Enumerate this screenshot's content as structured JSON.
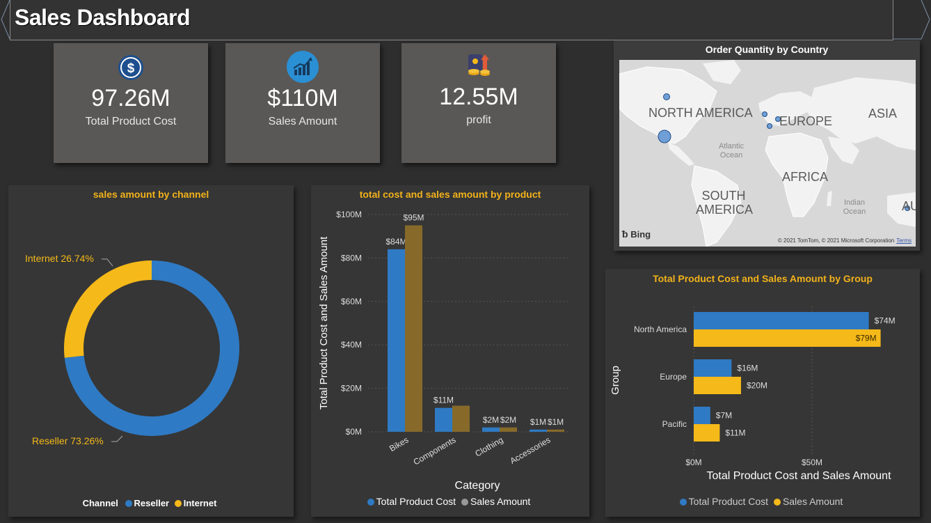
{
  "header": {
    "title": "Sales Dashboard"
  },
  "kpis": [
    {
      "icon": "dollar-icon",
      "value": "97.26M",
      "label": "Total Product Cost"
    },
    {
      "icon": "growth-chart-icon",
      "value": "$110M",
      "label": "Sales Amount"
    },
    {
      "icon": "profit-coins-icon",
      "value": "12.55M",
      "label": "profit"
    }
  ],
  "map": {
    "title": "Order Quantity by Country",
    "continents": [
      "NORTH AMERICA",
      "EUROPE",
      "ASIA",
      "AFRICA",
      "SOUTH AMERICA",
      "AU"
    ],
    "oceans": [
      "Atlantic Ocean",
      "Indian Ocean"
    ],
    "provider": "Bing",
    "copyright": "© 2021 TomTom, © 2021 Microsoft Corporation",
    "terms": "Terms"
  },
  "colors": {
    "blue": "#2f7ac4",
    "yellow": "#f5b919",
    "olive": "#876a2a",
    "accent_title": "#f2b21a"
  },
  "chart_data": [
    {
      "type": "pie",
      "title": "sales amount by channel",
      "legend_title": "Channel",
      "categories": [
        "Reseller",
        "Internet"
      ],
      "values": [
        73.26,
        26.74
      ],
      "data_labels": [
        "Reseller 73.26%",
        "Internet 26.74%"
      ],
      "colors": [
        "#2f7ac4",
        "#f5b919"
      ],
      "legend_position": "bottom"
    },
    {
      "type": "bar",
      "title": "total cost and sales amount by product",
      "categories": [
        "Bikes",
        "Components",
        "Clothing",
        "Accessories"
      ],
      "series": [
        {
          "name": "Total Product Cost",
          "values": [
            84,
            11,
            2,
            1
          ],
          "labels": [
            "$84M",
            "$11M",
            "$2M",
            "$1M"
          ],
          "color": "#2f7ac4"
        },
        {
          "name": "Sales Amount",
          "values": [
            95,
            12,
            2,
            1
          ],
          "labels": [
            "$95M",
            "",
            "$2M",
            "$1M"
          ],
          "color": "#876a2a"
        }
      ],
      "xlabel": "Category",
      "ylabel": "Total Product Cost and Sales Amount",
      "yticks": [
        "$0M",
        "$20M",
        "$40M",
        "$60M",
        "$80M",
        "$100M"
      ],
      "ylim": [
        0,
        100
      ],
      "legend_position": "bottom"
    },
    {
      "type": "bar",
      "orientation": "horizontal",
      "title": "Total Product Cost and Sales Amount by Group",
      "categories": [
        "North America",
        "Europe",
        "Pacific"
      ],
      "series": [
        {
          "name": "Total Product Cost",
          "values": [
            74,
            16,
            7
          ],
          "labels": [
            "$74M",
            "$16M",
            "$7M"
          ],
          "color": "#2f7ac4"
        },
        {
          "name": "Sales Amount",
          "values": [
            79,
            20,
            11
          ],
          "labels": [
            "$79M",
            "$20M",
            "$11M"
          ],
          "color": "#f5b919"
        }
      ],
      "xlabel": "Total Product Cost and Sales Amount",
      "ylabel": "Group",
      "xticks": [
        "$0M",
        "$50M"
      ],
      "xlim": [
        0,
        100
      ],
      "legend_position": "bottom"
    }
  ]
}
